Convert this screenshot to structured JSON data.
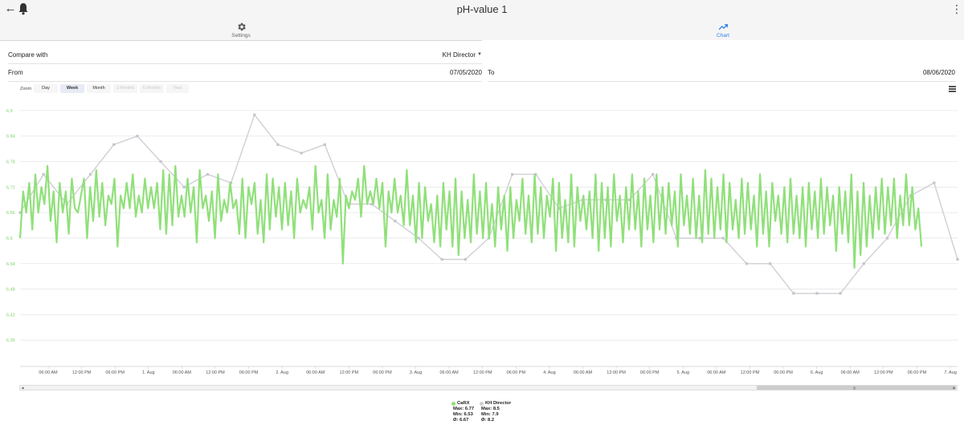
{
  "app": {
    "title": "pH-value 1",
    "back_icon": "arrow-left-icon",
    "bell_icon": "bell-icon",
    "more_icon": "more-vertical-icon"
  },
  "tabs": [
    {
      "label": "Settings",
      "icon": "gear-icon",
      "active": false
    },
    {
      "label": "Chart",
      "icon": "trending-up-icon",
      "active": true
    }
  ],
  "form": {
    "compare_label": "Compare with",
    "compare_value": "KH Director",
    "from_label": "From",
    "from_value": "07/05/2020",
    "to_label": "To",
    "to_value": "08/06/2020"
  },
  "zoom": {
    "label": "Zoom",
    "buttons": [
      {
        "label": "Day",
        "state": "normal"
      },
      {
        "label": "Week",
        "state": "selected"
      },
      {
        "label": "Month",
        "state": "normal"
      },
      {
        "label": "3 Months",
        "state": "disabled"
      },
      {
        "label": "6 Months",
        "state": "disabled"
      },
      {
        "label": "Year",
        "state": "disabled"
      }
    ]
  },
  "colors": {
    "carx": "#90e07a",
    "kh": "#cfcfd6",
    "axis_label": "#7fd36a",
    "grid": "#e6e6e6",
    "accent": "#2f80ed"
  },
  "chart_data": {
    "type": "line",
    "ylim": [
      6.3,
      6.93
    ],
    "y_ticks": [
      "6.9",
      "6.84",
      "6.78",
      "6.72",
      "6.66",
      "6.6",
      "6.54",
      "6.48",
      "6.42",
      "6.36"
    ],
    "x_tick_labels": [
      "06:00 AM",
      "12:00 PM",
      "06:00 PM",
      "1. Aug",
      "06:00 AM",
      "12:00 PM",
      "06:00 PM",
      "2. Aug",
      "06:00 AM",
      "12:00 PM",
      "06:00 PM",
      "3. Aug",
      "06:00 AM",
      "12:00 PM",
      "06:00 PM",
      "4. Aug",
      "06:00 AM",
      "12:00 PM",
      "06:00 PM",
      "5. Aug",
      "06:00 AM",
      "12:00 PM",
      "06:00 PM",
      "6. Aug",
      "06:00 AM",
      "12:00 PM",
      "06:00 PM",
      "7. Aug"
    ],
    "grid": true,
    "legend_position": "bottom-center",
    "series": [
      {
        "name": "CaRX",
        "color": "#90e07a",
        "stats": {
          "max": "Max: 6.77",
          "min": "Min: 6.53",
          "avg": "Ø: 6.67"
        },
        "values": [
          6.6,
          6.71,
          6.66,
          6.73,
          6.62,
          6.75,
          6.66,
          6.72,
          6.68,
          6.77,
          6.64,
          6.71,
          6.59,
          6.73,
          6.66,
          6.71,
          6.61,
          6.74,
          6.67,
          6.66,
          6.7,
          6.74,
          6.6,
          6.72,
          6.64,
          6.76,
          6.65,
          6.73,
          6.63,
          6.7,
          6.68,
          6.74,
          6.58,
          6.7,
          6.67,
          6.73,
          6.67,
          6.75,
          6.65,
          6.7,
          6.66,
          6.74,
          6.67,
          6.72,
          6.67,
          6.73,
          6.62,
          6.76,
          6.61,
          6.75,
          6.63,
          6.77,
          6.65,
          6.7,
          6.65,
          6.74,
          6.66,
          6.72,
          6.59,
          6.76,
          6.67,
          6.7,
          6.64,
          6.71,
          6.6,
          6.75,
          6.64,
          6.69,
          6.66,
          6.73,
          6.67,
          6.69,
          6.61,
          6.74,
          6.6,
          6.72,
          6.68,
          6.73,
          6.61,
          6.69,
          6.59,
          6.75,
          6.62,
          6.74,
          6.65,
          6.72,
          6.62,
          6.73,
          6.63,
          6.71,
          6.6,
          6.74,
          6.66,
          6.69,
          6.67,
          6.72,
          6.62,
          6.77,
          6.66,
          6.69,
          6.6,
          6.75,
          6.62,
          6.69,
          6.65,
          6.74,
          6.54,
          6.7,
          6.67,
          6.71,
          6.69,
          6.74,
          6.65,
          6.77,
          6.68,
          6.71,
          6.68,
          6.74,
          6.67,
          6.73,
          6.58,
          6.71,
          6.66,
          6.74,
          6.66,
          6.7,
          6.63,
          6.76,
          6.63,
          6.7,
          6.59,
          6.73,
          6.6,
          6.72,
          6.64,
          6.68,
          6.59,
          6.7,
          6.58,
          6.73,
          6.62,
          6.71,
          6.58,
          6.74,
          6.56,
          6.71,
          6.6,
          6.69,
          6.59,
          6.75,
          6.61,
          6.71,
          6.6,
          6.73,
          6.6,
          6.68,
          6.58,
          6.72,
          6.62,
          6.7,
          6.57,
          6.72,
          6.6,
          6.69,
          6.64,
          6.74,
          6.61,
          6.7,
          6.59,
          6.75,
          6.61,
          6.72,
          6.6,
          6.7,
          6.65,
          6.74,
          6.57,
          6.73,
          6.6,
          6.69,
          6.59,
          6.75,
          6.58,
          6.72,
          6.64,
          6.7,
          6.62,
          6.71,
          6.6,
          6.75,
          6.57,
          6.73,
          6.6,
          6.72,
          6.58,
          6.75,
          6.64,
          6.7,
          6.59,
          6.72,
          6.62,
          6.75,
          6.62,
          6.71,
          6.58,
          6.74,
          6.62,
          6.7,
          6.59,
          6.75,
          6.62,
          6.72,
          6.61,
          6.73,
          6.63,
          6.71,
          6.58,
          6.75,
          6.63,
          6.7,
          6.61,
          6.74,
          6.6,
          6.7,
          6.59,
          6.76,
          6.61,
          6.74,
          6.6,
          6.72,
          6.62,
          6.75,
          6.59,
          6.73,
          6.62,
          6.69,
          6.6,
          6.74,
          6.61,
          6.73,
          6.62,
          6.7,
          6.58,
          6.75,
          6.61,
          6.71,
          6.58,
          6.73,
          6.64,
          6.7,
          6.61,
          6.72,
          6.59,
          6.74,
          6.61,
          6.7,
          6.6,
          6.72,
          6.58,
          6.73,
          6.62,
          6.71,
          6.6,
          6.74,
          6.61,
          6.72,
          6.63,
          6.7,
          6.57,
          6.72,
          6.61,
          6.71,
          6.59,
          6.75,
          6.53,
          6.71,
          6.56,
          6.73,
          6.58,
          6.7,
          6.6,
          6.72,
          6.62,
          6.74,
          6.61,
          6.72,
          6.63,
          6.74,
          6.6,
          6.7,
          6.63,
          6.75,
          6.63,
          6.72,
          6.62,
          6.67,
          6.58
        ],
        "y_unit": "pH"
      },
      {
        "name": "KH Director",
        "color": "#cfcfd6",
        "stats": {
          "max": "Max: 8.5",
          "min": "Min: 7.9",
          "avg": "Ø: 8.2"
        },
        "points_t": [
          0,
          0.025,
          0.05,
          0.075,
          0.1,
          0.125,
          0.15,
          0.175,
          0.2,
          0.225,
          0.25,
          0.275,
          0.3,
          0.325,
          0.35,
          0.375,
          0.4,
          0.425,
          0.45,
          0.475,
          0.5,
          0.525,
          0.55,
          0.575,
          0.6,
          0.625,
          0.65,
          0.675,
          0.7,
          0.725,
          0.75,
          0.775,
          0.8,
          0.825,
          0.85,
          0.875,
          0.9,
          0.925,
          0.95,
          0.975,
          1.0
        ],
        "values_ph_axis": [
          6.66,
          6.75,
          6.68,
          6.75,
          6.82,
          6.84,
          6.78,
          6.72,
          6.75,
          6.73,
          6.89,
          6.82,
          6.8,
          6.82,
          6.68,
          6.68,
          6.64,
          6.6,
          6.55,
          6.55,
          6.6,
          6.75,
          6.75,
          6.67,
          6.69,
          6.69,
          6.69,
          6.75,
          6.6,
          6.6,
          6.6,
          6.54,
          6.54,
          6.47,
          6.47,
          6.47,
          6.54,
          6.6,
          6.7,
          6.73,
          6.55
        ]
      }
    ]
  }
}
